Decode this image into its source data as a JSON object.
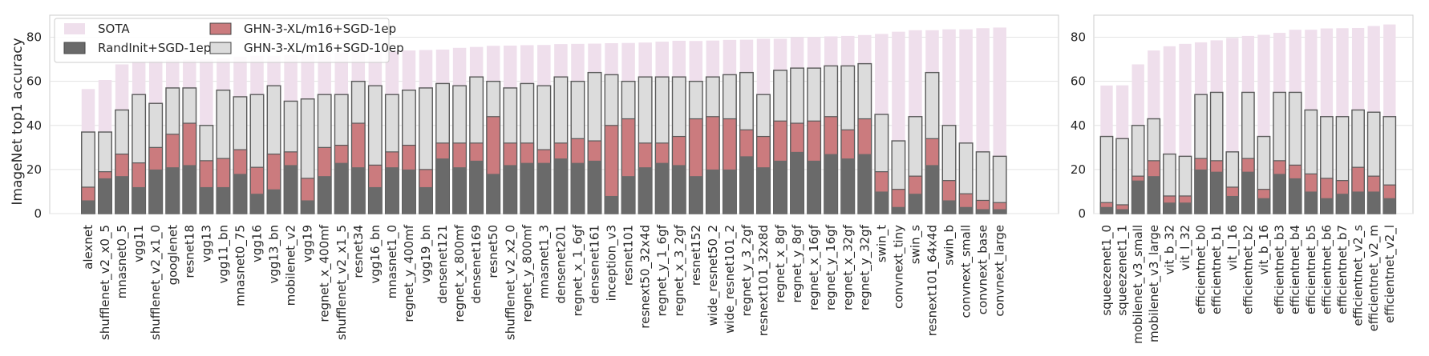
{
  "chart_data": [
    {
      "type": "bar",
      "ylabel": "ImageNet top1 accuracy",
      "ylim": [
        0,
        90
      ],
      "yticks": [
        0,
        20,
        40,
        60,
        80
      ],
      "grid": true,
      "legend_position": "top-left",
      "colors": {
        "sota": "#efdfec",
        "randinit": "#6a6a6a",
        "ghn1ep": "#cb7b7e",
        "ghn10ep": "#dcdcdc"
      },
      "categories": [
        "alexnet",
        "shufflenet_v2_x0_5",
        "mnasnet0_5",
        "vgg11",
        "shufflenet_v2_x1_0",
        "googlenet",
        "resnet18",
        "vgg13",
        "vgg11_bn",
        "mnasnet0_75",
        "vgg16",
        "vgg13_bn",
        "mobilenet_v2",
        "vgg19",
        "regnet_x_400mf",
        "shufflenet_v2_x1_5",
        "resnet34",
        "vgg16_bn",
        "mnasnet1_0",
        "regnet_y_400mf",
        "vgg19_bn",
        "densenet121",
        "regnet_x_800mf",
        "densenet169",
        "resnet50",
        "shufflenet_v2_x2_0",
        "regnet_y_800mf",
        "mnasnet1_3",
        "densenet201",
        "regnet_x_1_6gf",
        "densenet161",
        "inception_v3",
        "resnet101",
        "resnext50_32x4d",
        "regnet_y_1_6gf",
        "regnet_x_3_2gf",
        "resnet152",
        "wide_resnet50_2",
        "wide_resnet101_2",
        "regnet_y_3_2gf",
        "resnext101_32x8d",
        "regnet_x_8gf",
        "regnet_y_8gf",
        "regnet_x_16gf",
        "regnet_y_16gf",
        "regnet_x_32gf",
        "regnet_y_32gf",
        "swin_t",
        "convnext_tiny",
        "swin_s",
        "resnext101_64x4d",
        "swin_b",
        "convnext_small",
        "convnext_base",
        "convnext_large"
      ],
      "series": [
        {
          "name": "SOTA",
          "values": [
            56.5,
            60.6,
            67.7,
            69.0,
            69.4,
            69.8,
            69.8,
            69.9,
            70.4,
            71.2,
            71.6,
            71.6,
            71.9,
            72.4,
            72.8,
            73.0,
            73.3,
            73.4,
            73.5,
            74.0,
            74.2,
            74.4,
            75.2,
            75.6,
            76.1,
            76.2,
            76.4,
            76.5,
            76.9,
            77.0,
            77.1,
            77.3,
            77.4,
            77.6,
            78.0,
            78.4,
            78.3,
            78.5,
            78.8,
            78.9,
            79.3,
            79.3,
            80.0,
            80.1,
            80.4,
            80.6,
            81.0,
            81.5,
            82.5,
            83.2,
            83.2,
            83.6,
            83.6,
            84.1,
            84.4
          ]
        },
        {
          "name": "GHN-3-XL/m16+SGD-10ep",
          "values": [
            37,
            37,
            47,
            54,
            50,
            57,
            57,
            40,
            56,
            53,
            54,
            58,
            51,
            52,
            54,
            54,
            60,
            58,
            54,
            56,
            57,
            59,
            58,
            62,
            60,
            57,
            59,
            58,
            62,
            60,
            64,
            63,
            60,
            62,
            62,
            62,
            60,
            62,
            63,
            64,
            54,
            65,
            66,
            66,
            67,
            67,
            68,
            45,
            33,
            44,
            64,
            40,
            32,
            28,
            26
          ]
        },
        {
          "name": "GHN-3-XL/m16+SGD-1ep",
          "values": [
            12,
            19,
            27,
            23,
            30,
            36,
            41,
            24,
            25,
            29,
            21,
            27,
            28,
            16,
            30,
            31,
            41,
            22,
            28,
            31,
            20,
            32,
            32,
            32,
            44,
            32,
            32,
            29,
            32,
            34,
            33,
            40,
            43,
            32,
            32,
            35,
            43,
            44,
            43,
            38,
            35,
            42,
            41,
            42,
            44,
            38,
            43,
            19,
            11,
            17,
            34,
            15,
            9,
            6,
            5
          ]
        },
        {
          "name": "RandInit+SGD-1ep",
          "values": [
            6,
            16,
            17,
            12,
            20,
            21,
            22,
            12,
            12,
            18,
            9,
            11,
            22,
            6,
            17,
            23,
            21,
            12,
            21,
            20,
            12,
            25,
            21,
            24,
            18,
            22,
            23,
            23,
            25,
            23,
            24,
            8,
            17,
            21,
            23,
            22,
            17,
            20,
            20,
            26,
            21,
            24,
            28,
            24,
            27,
            25,
            27,
            10,
            3,
            9,
            22,
            6,
            3,
            2,
            2
          ]
        }
      ]
    },
    {
      "type": "bar",
      "ylim": [
        0,
        90
      ],
      "yticks": [
        0,
        20,
        40,
        60,
        80
      ],
      "grid": true,
      "categories": [
        "squeezenet1_0",
        "squeezenet1_1",
        "mobilenet_v3_small",
        "mobilenet_v3_large",
        "vit_b_32",
        "vit_l_32",
        "efficientnet_b0",
        "efficientnet_b1",
        "vit_l_16",
        "efficientnet_b2",
        "vit_b_16",
        "efficientnet_b3",
        "efficientnet_b4",
        "efficientnet_b5",
        "efficientnet_b6",
        "efficientnet_b7",
        "efficientnet_v2_s",
        "efficientnet_v2_m",
        "efficientnet_v2_l"
      ],
      "series": [
        {
          "name": "SOTA",
          "values": [
            58.1,
            58.2,
            67.7,
            74.0,
            75.9,
            77.0,
            77.7,
            78.6,
            79.7,
            80.6,
            81.1,
            82.0,
            83.4,
            83.4,
            84.0,
            84.1,
            84.2,
            85.1,
            85.8
          ]
        },
        {
          "name": "GHN-3-XL/m16+SGD-10ep",
          "values": [
            35,
            34,
            40,
            43,
            27,
            26,
            54,
            55,
            28,
            55,
            35,
            55,
            55,
            47,
            44,
            44,
            47,
            46,
            44
          ]
        },
        {
          "name": "GHN-3-XL/m16+SGD-1ep",
          "values": [
            5,
            4,
            17,
            24,
            8,
            8,
            25,
            24,
            12,
            25,
            11,
            24,
            22,
            18,
            16,
            15,
            21,
            17,
            13
          ]
        },
        {
          "name": "RandInit+SGD-1ep",
          "values": [
            3,
            2,
            15,
            17,
            5,
            5,
            20,
            19,
            8,
            19,
            7,
            18,
            16,
            10,
            7,
            9,
            10,
            10,
            7
          ]
        }
      ]
    }
  ],
  "legend": {
    "sota": "SOTA",
    "randinit": "RandInit+SGD-1ep",
    "ghn1ep": "GHN-3-XL/m16+SGD-1ep",
    "ghn10ep": "GHN-3-XL/m16+SGD-10ep"
  }
}
